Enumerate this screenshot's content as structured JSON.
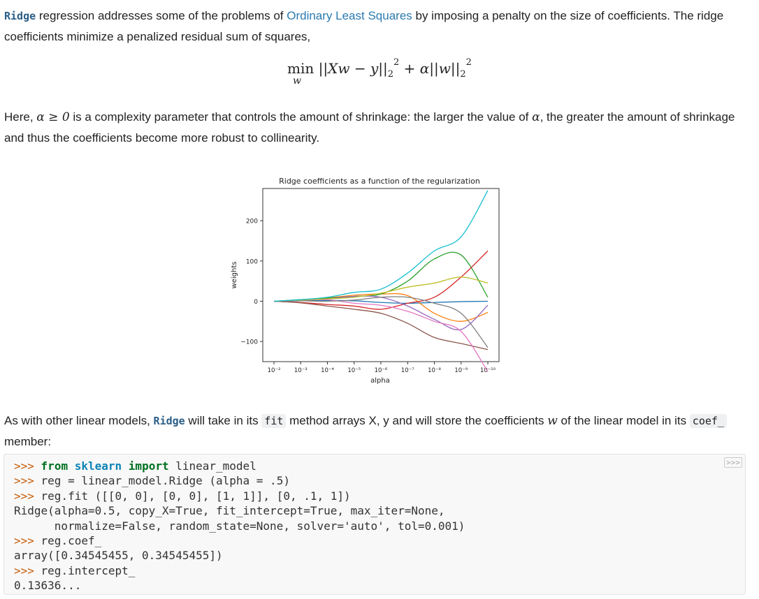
{
  "intro": {
    "code1": "Ridge",
    "text1": " regression addresses some of the problems of ",
    "link": "Ordinary Least Squares",
    "text2": " by imposing a penalty on the size of coefficients. The ridge coefficients minimize a penalized residual sum of squares,"
  },
  "formula": {
    "min": "min",
    "sub": "w",
    "body1": "||Xw − y||",
    "sub2": "2",
    "sup2": "2",
    "plus": " + α||w||",
    "sub3": "2",
    "sup3": "2"
  },
  "para2": {
    "t1": "Here, ",
    "m1": "α ≥ 0",
    "t2": " is a complexity parameter that controls the amount of shrinkage: the larger the value of ",
    "m2": "α",
    "t3": ", the greater the amount of shrinkage and thus the coefficients become more robust to collinearity."
  },
  "para3": {
    "t1": "As with other linear models, ",
    "c1": "Ridge",
    "t2": " will take in its ",
    "c2": "fit",
    "t3": " method arrays X, y and will store the coefficients ",
    "m1": "w",
    "t4": " of the linear model in its ",
    "c3": "coef_",
    "t5": " member:"
  },
  "code": {
    "copy": ">>>",
    "prompt": ">>>",
    "l1_from": "from",
    "l1_mod": "sklearn",
    "l1_import": "import",
    "l1_rest": " linear_model",
    "l2": " reg = linear_model.Ridge (alpha = .5)",
    "l3": " reg.fit ([[0, 0], [0, 0], [1, 1]], [0, .1, 1])",
    "l4": "Ridge(alpha=0.5, copy_X=True, fit_intercept=True, max_iter=None,",
    "l5": "      normalize=False, random_state=None, solver='auto', tol=0.001)",
    "l6": " reg.coef_",
    "l7": "array([0.34545455, 0.34545455])",
    "l8": " reg.intercept_",
    "l9": "0.13636..."
  },
  "chart_data": {
    "type": "line",
    "title": "Ridge coefficients as a function of the regularization",
    "xlabel": "alpha",
    "ylabel": "weights",
    "xscale": "log-reversed",
    "x": [
      "10^-2",
      "10^-3",
      "10^-4",
      "10^-5",
      "10^-6",
      "10^-7",
      "10^-8",
      "10^-9",
      "10^-10"
    ],
    "xticks": [
      "10⁻²",
      "10⁻³",
      "10⁻⁴",
      "10⁻⁵",
      "10⁻⁶",
      "10⁻⁷",
      "10⁻⁸",
      "10⁻⁹",
      "10⁻¹⁰"
    ],
    "yticks": [
      200,
      100,
      0,
      -100
    ],
    "ylim": [
      -150,
      280
    ],
    "series": [
      {
        "color": "#1f77b4",
        "values": [
          0,
          1,
          2,
          1,
          -3,
          -5,
          -3,
          -1,
          0
        ]
      },
      {
        "color": "#ff7f0e",
        "values": [
          0,
          2,
          8,
          15,
          18,
          14,
          -30,
          -50,
          -28
        ]
      },
      {
        "color": "#2ca02c",
        "values": [
          0,
          4,
          8,
          12,
          18,
          50,
          105,
          115,
          10
        ]
      },
      {
        "color": "#d62728",
        "values": [
          0,
          -3,
          -8,
          -12,
          -20,
          -5,
          10,
          60,
          125
        ]
      },
      {
        "color": "#9467bd",
        "values": [
          0,
          2,
          6,
          12,
          10,
          -12,
          -45,
          -70,
          -10
        ]
      },
      {
        "color": "#8c564b",
        "values": [
          0,
          -4,
          -12,
          -20,
          -30,
          -55,
          -90,
          -105,
          -120
        ]
      },
      {
        "color": "#e377c2",
        "values": [
          0,
          3,
          4,
          -5,
          -10,
          -25,
          -50,
          -75,
          -175
        ]
      },
      {
        "color": "#7f7f7f",
        "values": [
          0,
          1,
          0,
          3,
          10,
          10,
          -5,
          -30,
          -115
        ]
      },
      {
        "color": "#bcbd22",
        "values": [
          0,
          3,
          6,
          10,
          20,
          35,
          45,
          60,
          45
        ]
      },
      {
        "color": "#17becf",
        "values": [
          0,
          4,
          10,
          22,
          30,
          70,
          125,
          160,
          275
        ]
      }
    ]
  }
}
